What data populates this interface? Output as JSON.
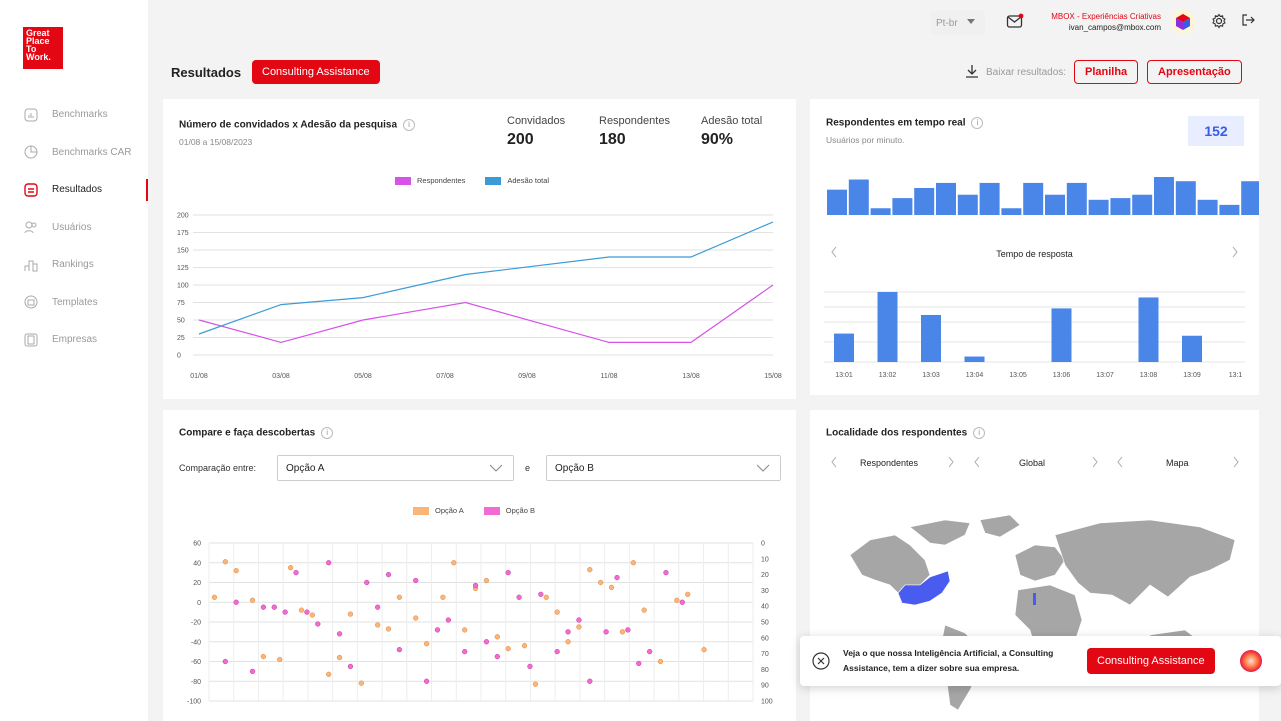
{
  "brand": {
    "logo_lines": [
      "Great",
      "Place",
      "To",
      "Work."
    ]
  },
  "sidebar": {
    "items": [
      {
        "label": "Benchmarks"
      },
      {
        "label": "Benchmarks CAR"
      },
      {
        "label": "Resultados"
      },
      {
        "label": "Usuários"
      },
      {
        "label": "Rankings"
      },
      {
        "label": "Templates"
      },
      {
        "label": "Empresas"
      }
    ]
  },
  "topbar": {
    "lang": "Pt-br",
    "org": "MBOX - Experiências Criativas",
    "email": "ivan_campos@mbox.com"
  },
  "header": {
    "title": "Resultados",
    "consulting_label": "Consulting Assistance",
    "download_label": "Baixar resultados:",
    "planilha_label": "Planilha",
    "apresentacao_label": "Apresentação"
  },
  "colors": {
    "accent": "#e30613",
    "respondentes": "#d652e8",
    "adesao": "#3a9bd6",
    "bar": "#4a86e8",
    "opcaoA": "#fbb47a",
    "opcaoB": "#f36ad0",
    "map_land": "#a6a6a6",
    "map_highlight": "#4a5bef"
  },
  "card1": {
    "title": "Número de convidados x Adesão da pesquisa",
    "date": "01/08 a 15/08/2023",
    "stats": [
      {
        "label": "Convidados",
        "value": "200"
      },
      {
        "label": "Respondentes",
        "value": "180"
      },
      {
        "label": "Adesão total",
        "value": "90%"
      }
    ],
    "legend": [
      "Respondentes",
      "Adesão total"
    ]
  },
  "chart_data": [
    {
      "type": "line",
      "title": "Número de convidados x Adesão da pesquisa",
      "x": [
        "01/08",
        "03/08",
        "05/08",
        "07/08",
        "09/08",
        "11/08",
        "13/08",
        "15/08"
      ],
      "ylim": [
        0,
        200
      ],
      "yticks": [
        0,
        25,
        50,
        75,
        100,
        125,
        150,
        175,
        200
      ],
      "series": [
        {
          "name": "Respondentes",
          "x": [
            1,
            3,
            5,
            7.5,
            11,
            13,
            15
          ],
          "values": [
            50,
            18,
            50,
            75,
            18,
            18,
            100
          ]
        },
        {
          "name": "Adesão total",
          "x": [
            1,
            3,
            5,
            7.5,
            11,
            13,
            15
          ],
          "values": [
            30,
            72,
            82,
            115,
            140,
            140,
            190
          ]
        }
      ]
    },
    {
      "type": "bar",
      "title": "Respondentes em tempo real",
      "values": [
        30,
        42,
        8,
        20,
        32,
        38,
        24,
        38,
        8,
        38,
        24,
        38,
        18,
        20,
        24,
        45,
        40,
        18,
        12,
        40
      ]
    },
    {
      "type": "bar",
      "title": "Tempo de resposta",
      "categories": [
        "13:01",
        "13:02",
        "13:03",
        "13:04",
        "13:05",
        "13:06",
        "13:07",
        "13:08",
        "13:09",
        "13:1"
      ],
      "values": [
        26,
        64,
        43,
        5,
        0,
        49,
        0,
        59,
        24,
        0
      ]
    },
    {
      "type": "scatter",
      "title": "Compare e faça descobertas",
      "legend": [
        "Opção A",
        "Opção B"
      ],
      "y_left_ticks": [
        60,
        40,
        20,
        0,
        -20,
        -40,
        -60,
        -80,
        -100
      ],
      "y_right_ticks": [
        0,
        10,
        20,
        30,
        40,
        50,
        60,
        70,
        80,
        90,
        100
      ],
      "series": [
        {
          "name": "Opção A",
          "points": [
            [
              0.01,
              5
            ],
            [
              0.03,
              41
            ],
            [
              0.05,
              32
            ],
            [
              0.08,
              2
            ],
            [
              0.1,
              -55
            ],
            [
              0.13,
              -58
            ],
            [
              0.15,
              35
            ],
            [
              0.17,
              -8
            ],
            [
              0.19,
              -13
            ],
            [
              0.22,
              -73
            ],
            [
              0.24,
              -56
            ],
            [
              0.26,
              -12
            ],
            [
              0.28,
              -82
            ],
            [
              0.31,
              -23
            ],
            [
              0.33,
              -27
            ],
            [
              0.35,
              5
            ],
            [
              0.38,
              -16
            ],
            [
              0.4,
              -42
            ],
            [
              0.43,
              5
            ],
            [
              0.45,
              40
            ],
            [
              0.47,
              -28
            ],
            [
              0.49,
              14
            ],
            [
              0.51,
              22
            ],
            [
              0.53,
              -35
            ],
            [
              0.55,
              -47
            ],
            [
              0.58,
              -44
            ],
            [
              0.6,
              -83
            ],
            [
              0.62,
              5
            ],
            [
              0.64,
              -10
            ],
            [
              0.66,
              -40
            ],
            [
              0.68,
              -25
            ],
            [
              0.7,
              33
            ],
            [
              0.72,
              20
            ],
            [
              0.74,
              15
            ],
            [
              0.76,
              -30
            ],
            [
              0.78,
              40
            ],
            [
              0.8,
              -8
            ],
            [
              0.83,
              -60
            ],
            [
              0.86,
              2
            ],
            [
              0.88,
              8
            ],
            [
              0.91,
              -48
            ]
          ]
        },
        {
          "name": "Opção B",
          "points": [
            [
              0.03,
              -60
            ],
            [
              0.05,
              0
            ],
            [
              0.08,
              -70
            ],
            [
              0.1,
              -5
            ],
            [
              0.12,
              -5
            ],
            [
              0.14,
              -10
            ],
            [
              0.16,
              30
            ],
            [
              0.18,
              -10
            ],
            [
              0.2,
              -22
            ],
            [
              0.22,
              40
            ],
            [
              0.24,
              -32
            ],
            [
              0.26,
              -65
            ],
            [
              0.29,
              20
            ],
            [
              0.31,
              -5
            ],
            [
              0.33,
              28
            ],
            [
              0.35,
              -48
            ],
            [
              0.38,
              22
            ],
            [
              0.4,
              -80
            ],
            [
              0.42,
              -28
            ],
            [
              0.44,
              -18
            ],
            [
              0.47,
              -50
            ],
            [
              0.49,
              17
            ],
            [
              0.51,
              -40
            ],
            [
              0.53,
              -55
            ],
            [
              0.55,
              30
            ],
            [
              0.57,
              5
            ],
            [
              0.59,
              -65
            ],
            [
              0.61,
              8
            ],
            [
              0.64,
              -50
            ],
            [
              0.66,
              -30
            ],
            [
              0.68,
              -18
            ],
            [
              0.7,
              -80
            ],
            [
              0.73,
              -30
            ],
            [
              0.75,
              25
            ],
            [
              0.77,
              -28
            ],
            [
              0.79,
              -62
            ],
            [
              0.81,
              -50
            ],
            [
              0.84,
              30
            ],
            [
              0.87,
              0
            ]
          ]
        }
      ]
    }
  ],
  "card2": {
    "title": "Respondentes em tempo real",
    "subtitle": "Usuários por minuto.",
    "badge": "152",
    "tempo_label": "Tempo de resposta"
  },
  "card3": {
    "title": "Compare e faça descobertas",
    "compare_label": "Comparação entre:",
    "option_a": "Opção A",
    "option_b": "Opção B",
    "e_label": "e",
    "legend": [
      "Opção A",
      "Opção B"
    ]
  },
  "card4": {
    "title": "Localidade dos respondentes",
    "nav": [
      "Respondentes",
      "Global",
      "Mapa"
    ]
  },
  "popup": {
    "line1": "Veja o que nossa Inteligência Artificial, a Consulting",
    "line2": "Assistance, tem a dizer sobre sua empresa.",
    "button": "Consulting Assistance"
  }
}
